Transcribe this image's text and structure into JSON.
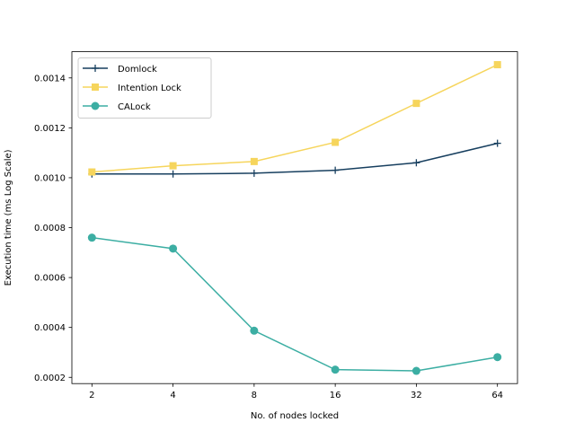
{
  "chart_data": {
    "type": "line",
    "xlabel": "No. of nodes locked",
    "ylabel": "Execution time (ms Log Scale)",
    "categories": [
      "2",
      "4",
      "8",
      "16",
      "32",
      "64"
    ],
    "ylim": [
      0.000175,
      0.001505
    ],
    "yticks": [
      "0.0002",
      "0.0004",
      "0.0006",
      "0.0008",
      "0.0010",
      "0.0012",
      "0.0014"
    ],
    "ytick_values": [
      0.0002,
      0.0004,
      0.0006,
      0.0008,
      0.001,
      0.0012,
      0.0014
    ],
    "legend_position": "top-left",
    "grid": false,
    "series": [
      {
        "name": "Domlock",
        "color": "#173f5f",
        "marker": "plus",
        "values": [
          0.001015,
          0.001015,
          0.001018,
          0.00103,
          0.00106,
          0.001138
        ]
      },
      {
        "name": "Intention Lock",
        "color": "#f6d55c",
        "marker": "square",
        "values": [
          0.001023,
          0.001048,
          0.001065,
          0.001142,
          0.001298,
          0.001453
        ]
      },
      {
        "name": "CALock",
        "color": "#3caea3",
        "marker": "circle",
        "values": [
          0.00076,
          0.000716,
          0.000387,
          0.000231,
          0.000226,
          0.000281
        ]
      }
    ]
  }
}
